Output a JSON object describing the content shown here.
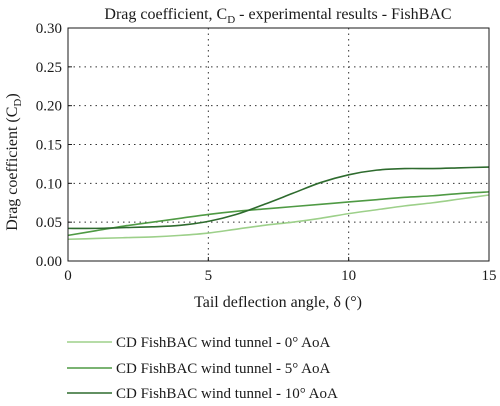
{
  "chart_data": {
    "type": "line",
    "title": "Drag coefficient, C_D - experimental results - FishBAC",
    "title_parts": {
      "pre": "Drag coefficient, C",
      "sub": "D",
      "post": " - experimental results - FishBAC"
    },
    "xlabel": "Tail deflection angle, δ (°)",
    "ylabel_parts": {
      "pre": "Drag coefficient (C",
      "sub": "D",
      "post": ")"
    },
    "xlim": [
      0,
      15
    ],
    "ylim": [
      0,
      0.3
    ],
    "x_ticks": [
      0,
      5,
      10,
      15
    ],
    "x_tick_labels": [
      "0",
      "5",
      "10",
      "15"
    ],
    "y_ticks": [
      0,
      0.05,
      0.1,
      0.15,
      0.2,
      0.25,
      0.3
    ],
    "y_tick_labels": [
      "0.00",
      "0.05",
      "0.10",
      "0.15",
      "0.20",
      "0.25",
      "0.30"
    ],
    "grid": "dotted",
    "legend_position": "bottom",
    "series": [
      {
        "name": "CD FishBAC wind tunnel - 0° AoA",
        "color": "#9dd08a",
        "x": [
          0,
          1,
          2,
          3,
          4,
          5,
          6,
          7,
          8,
          9,
          10,
          11,
          12,
          13,
          14,
          15
        ],
        "y": [
          0.028,
          0.029,
          0.03,
          0.031,
          0.033,
          0.036,
          0.041,
          0.046,
          0.05,
          0.055,
          0.061,
          0.066,
          0.071,
          0.075,
          0.08,
          0.085
        ]
      },
      {
        "name": "CD FishBAC wind tunnel - 5° AoA",
        "color": "#4f9a44",
        "x": [
          0,
          1,
          2,
          3,
          4,
          5,
          6,
          7,
          8,
          9,
          10,
          11,
          12,
          13,
          14,
          15
        ],
        "y": [
          0.033,
          0.039,
          0.045,
          0.05,
          0.055,
          0.06,
          0.064,
          0.067,
          0.07,
          0.073,
          0.076,
          0.079,
          0.082,
          0.084,
          0.087,
          0.089
        ]
      },
      {
        "name": "CD FishBAC wind tunnel - 10° AoA",
        "color": "#2e6b2e",
        "x": [
          0,
          1,
          2,
          3,
          4,
          5,
          6,
          7,
          8,
          9,
          10,
          11,
          12,
          13,
          14,
          15
        ],
        "y": [
          0.042,
          0.042,
          0.043,
          0.044,
          0.046,
          0.051,
          0.06,
          0.073,
          0.087,
          0.101,
          0.111,
          0.117,
          0.119,
          0.119,
          0.12,
          0.121
        ]
      }
    ]
  }
}
